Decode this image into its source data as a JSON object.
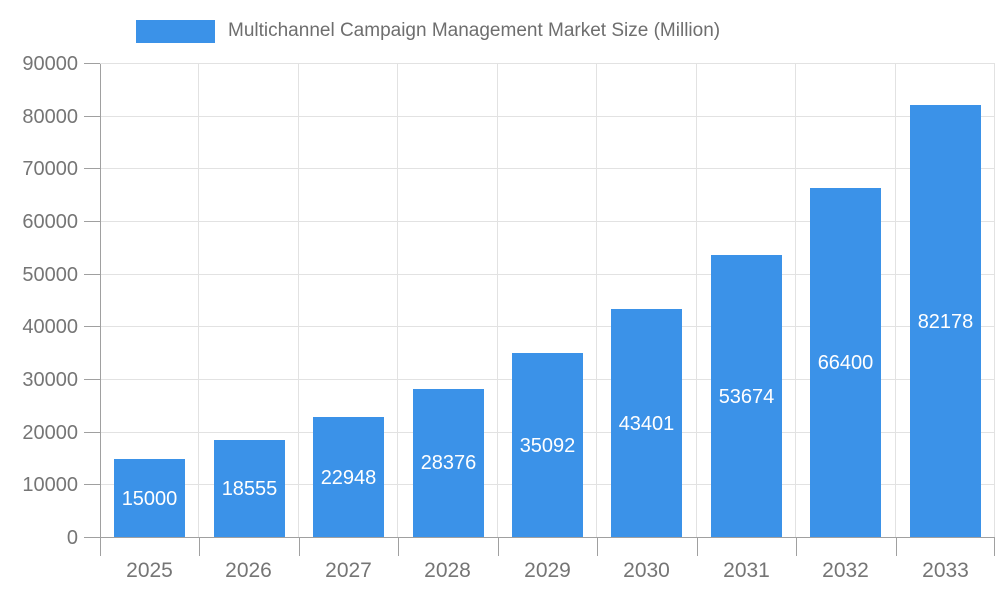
{
  "legend": {
    "label": "Multichannel Campaign Management Market Size (Million)"
  },
  "colors": {
    "bar": "#3B92E8",
    "grid": "#e2e2e2",
    "axis": "#a0a0a0",
    "axis_text": "#757575",
    "title_text": "#6e6e6e",
    "value_label_text": "#ffffff"
  },
  "chart_data": {
    "type": "bar",
    "title": "Multichannel Campaign Management Market Size (Million)",
    "categories": [
      "2025",
      "2026",
      "2027",
      "2028",
      "2029",
      "2030",
      "2031",
      "2032",
      "2033"
    ],
    "values": [
      15000,
      18555,
      22948,
      28376,
      35092,
      43401,
      53674,
      66400,
      82178
    ],
    "xlabel": "",
    "ylabel": "",
    "ylim": [
      0,
      90000
    ],
    "ytick_step": 10000,
    "grid": "on",
    "legend_position": "top",
    "value_labels": "inside-center"
  }
}
